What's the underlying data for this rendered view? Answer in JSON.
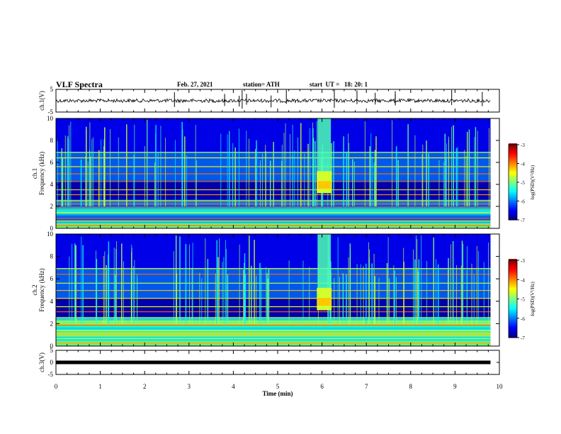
{
  "header": {
    "title": "VLF Spectra",
    "date": "Feb. 27, 2021",
    "station": "station= ATH",
    "start_ut": "start  UT =   18: 20: 1"
  },
  "chart_data": [
    {
      "type": "line",
      "panel": "ch1-waveform",
      "ylabel": "ch.1(V)",
      "ylim": [
        -5,
        5
      ],
      "yticks": [
        "5",
        "-5"
      ],
      "xlim": [
        0,
        10
      ],
      "baseline_v": 0,
      "note_ref": "flat noisy trace near 0 V"
    },
    {
      "type": "heatmap",
      "panel": "ch1-spectrogram",
      "ylabel": "ch.1",
      "ylabel2": "Frequency (kHz)",
      "ylim": [
        0,
        10
      ],
      "yticks": [
        "0",
        "2",
        "4",
        "6",
        "8",
        "10"
      ],
      "xlim": [
        0,
        10
      ],
      "data_end_min": 9.8,
      "burst_min": [
        5.9,
        6.2
      ],
      "colorbar": {
        "label": "log(PSD)(V²/Hz)",
        "range": [
          -7,
          -3
        ],
        "ticks": [
          "-3",
          "-4",
          "-5",
          "-6",
          "-7"
        ]
      }
    },
    {
      "type": "heatmap",
      "panel": "ch2-spectrogram",
      "ylabel": "ch.2",
      "ylabel2": "Frequency (kHz)",
      "ylim": [
        0,
        10
      ],
      "yticks": [
        "0",
        "2",
        "4",
        "6",
        "8",
        "10"
      ],
      "xlim": [
        0,
        10
      ],
      "data_end_min": 9.8,
      "burst_min": [
        5.9,
        6.2
      ],
      "colorbar": {
        "label": "log(PSD)(V²/Hz)",
        "range": [
          -7,
          -3
        ],
        "ticks": [
          "-3",
          "-4",
          "-5",
          "-6",
          "-7"
        ]
      }
    },
    {
      "type": "line",
      "panel": "ch3-waveform",
      "ylabel": "ch.3(V)",
      "ylim": [
        -5,
        5
      ],
      "yticks": [
        "5",
        "0",
        "-5"
      ],
      "xlim": [
        0,
        10
      ],
      "baseline_v": 0,
      "xlabel": "Time  (min)",
      "xticks": [
        "0",
        "1",
        "2",
        "3",
        "4",
        "5",
        "6",
        "7",
        "8",
        "9",
        "10"
      ]
    }
  ]
}
